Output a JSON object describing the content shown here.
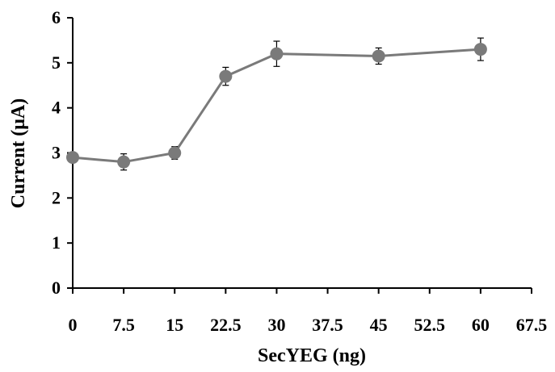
{
  "chart_data": {
    "type": "line",
    "xlabel": "SecYEG (ng)",
    "ylabel": "Current (μA)",
    "xlim": [
      0,
      67.5
    ],
    "ylim": [
      0,
      6
    ],
    "x_ticks": [
      0,
      7.5,
      15,
      22.5,
      30,
      37.5,
      45,
      52.5,
      60,
      67.5
    ],
    "x_tick_labels": [
      "0",
      "7.5",
      "15",
      "22.5",
      "30",
      "37.5",
      "45",
      "52.5",
      "60",
      "67.5"
    ],
    "y_ticks": [
      0,
      1,
      2,
      3,
      4,
      5,
      6
    ],
    "y_tick_labels": [
      "0",
      "1",
      "2",
      "3",
      "4",
      "5",
      "6"
    ],
    "grid": false,
    "legend": "none",
    "series": [
      {
        "color": "#7a7a7a",
        "x": [
          0,
          7.5,
          15,
          22.5,
          30,
          45,
          60
        ],
        "y": [
          2.9,
          2.8,
          3.0,
          4.7,
          5.2,
          5.15,
          5.3
        ],
        "error": [
          0.0,
          0.18,
          0.14,
          0.2,
          0.28,
          0.18,
          0.25
        ]
      }
    ]
  }
}
